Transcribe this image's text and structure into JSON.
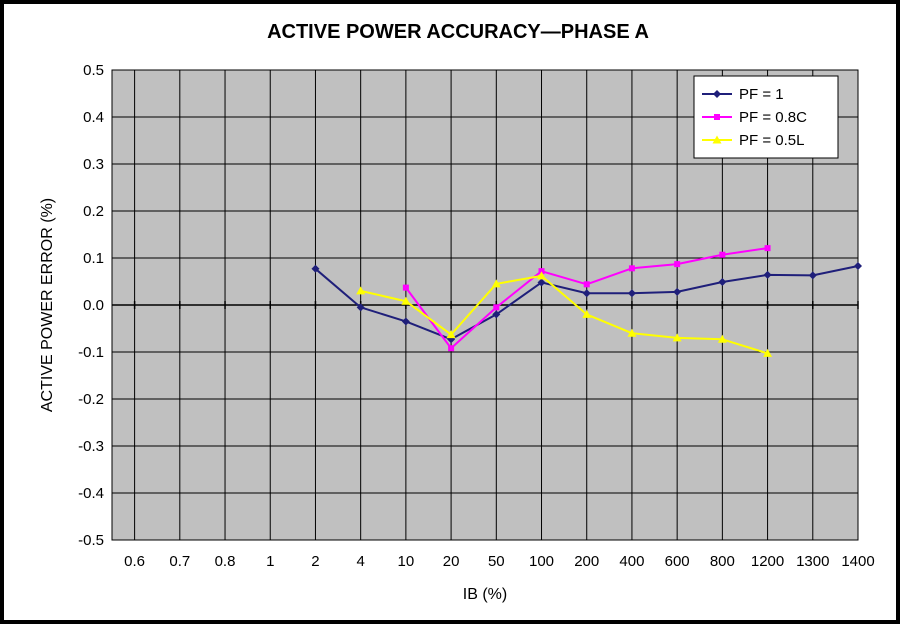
{
  "chart_data": {
    "type": "line",
    "title": "ACTIVE POWER ACCURACY—PHASE A",
    "xlabel": "IB (%)",
    "ylabel": "ACTIVE POWER ERROR (%)",
    "categories": [
      "0.6",
      "0.7",
      "0.8",
      "1",
      "2",
      "4",
      "10",
      "20",
      "50",
      "100",
      "200",
      "400",
      "600",
      "800",
      "1200",
      "1300",
      "1400"
    ],
    "ylim": [
      -0.5,
      0.5
    ],
    "yticks": [
      "0.5",
      "0.4",
      "0.3",
      "0.2",
      "0.1",
      "0.0",
      "-0.1",
      "-0.2",
      "-0.3",
      "-0.4",
      "-0.5"
    ],
    "grid": true,
    "legend_position": "top-right",
    "colors": {
      "plot_background": "#C0C0C0",
      "grid": "#000000"
    },
    "series": [
      {
        "name": "PF = 1",
        "color": "#1F1F7A",
        "marker": "diamond",
        "points": [
          {
            "x": "2",
            "y": 0.077
          },
          {
            "x": "4",
            "y": -0.005
          },
          {
            "x": "10",
            "y": -0.035
          },
          {
            "x": "20",
            "y": -0.073
          },
          {
            "x": "50",
            "y": -0.02
          },
          {
            "x": "100",
            "y": 0.048
          },
          {
            "x": "200",
            "y": 0.025
          },
          {
            "x": "400",
            "y": 0.025
          },
          {
            "x": "600",
            "y": 0.028
          },
          {
            "x": "800",
            "y": 0.049
          },
          {
            "x": "1200",
            "y": 0.064
          },
          {
            "x": "1300",
            "y": 0.063
          },
          {
            "x": "1400",
            "y": 0.083
          }
        ]
      },
      {
        "name": "PF = 0.8C",
        "color": "#FF00FF",
        "marker": "square",
        "points": [
          {
            "x": "10",
            "y": 0.037
          },
          {
            "x": "20",
            "y": -0.092
          },
          {
            "x": "50",
            "y": -0.005
          },
          {
            "x": "100",
            "y": 0.072
          },
          {
            "x": "200",
            "y": 0.044
          },
          {
            "x": "400",
            "y": 0.078
          },
          {
            "x": "600",
            "y": 0.087
          },
          {
            "x": "800",
            "y": 0.107
          },
          {
            "x": "1200",
            "y": 0.121
          }
        ]
      },
      {
        "name": "PF = 0.5L",
        "color": "#FFFF00",
        "marker": "triangle",
        "points": [
          {
            "x": "4",
            "y": 0.03
          },
          {
            "x": "10",
            "y": 0.008
          },
          {
            "x": "20",
            "y": -0.063
          },
          {
            "x": "50",
            "y": 0.045
          },
          {
            "x": "100",
            "y": 0.062
          },
          {
            "x": "200",
            "y": -0.02
          },
          {
            "x": "400",
            "y": -0.06
          },
          {
            "x": "600",
            "y": -0.07
          },
          {
            "x": "800",
            "y": -0.073
          },
          {
            "x": "1200",
            "y": -0.103
          }
        ]
      }
    ]
  }
}
